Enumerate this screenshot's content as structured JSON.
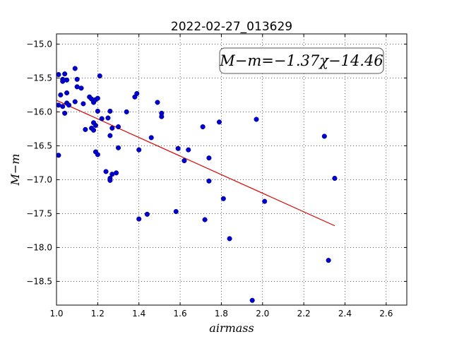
{
  "chart_data": {
    "type": "scatter",
    "title": "2022-02-27_013629",
    "xlabel": "airmass",
    "ylabel": "M−m",
    "xlim": [
      1.0,
      2.7
    ],
    "ylim": [
      -18.85,
      -14.85
    ],
    "y_inverted": true,
    "grid": true,
    "xticks": [
      1.0,
      1.2,
      1.4,
      1.6,
      1.8,
      2.0,
      2.2,
      2.4,
      2.6
    ],
    "xtick_labels": [
      "1.0",
      "1.2",
      "1.4",
      "1.6",
      "1.8",
      "2.0",
      "2.2",
      "2.4",
      "2.6"
    ],
    "yticks": [
      -15.0,
      -15.5,
      -16.0,
      -16.5,
      -17.0,
      -17.5,
      -18.0,
      -18.5
    ],
    "ytick_labels": [
      "−15.0",
      "−15.5",
      "−16.0",
      "−16.5",
      "−17.0",
      "−17.5",
      "−18.0",
      "−18.5"
    ],
    "annotation": "M−m=−1.37χ−14.46",
    "annotation_placement": "top-right",
    "fit": {
      "slope": -1.37,
      "intercept": -14.46,
      "x_range": [
        1.0,
        2.35
      ],
      "color": "#dd0000"
    },
    "series": [
      {
        "color": "#0000cc",
        "points": [
          [
            1.01,
            -15.45
          ],
          [
            1.02,
            -15.75
          ],
          [
            1.03,
            -15.52
          ],
          [
            1.03,
            -15.55
          ],
          [
            1.04,
            -15.44
          ],
          [
            1.05,
            -15.53
          ],
          [
            1.05,
            -15.72
          ],
          [
            1.05,
            -15.87
          ],
          [
            1.06,
            -15.9
          ],
          [
            1.01,
            -15.9
          ],
          [
            1.03,
            -15.92
          ],
          [
            1.04,
            -16.02
          ],
          [
            1.01,
            -16.64
          ],
          [
            1.09,
            -15.36
          ],
          [
            1.1,
            -15.52
          ],
          [
            1.1,
            -15.63
          ],
          [
            1.12,
            -15.65
          ],
          [
            1.09,
            -15.85
          ],
          [
            1.13,
            -15.88
          ],
          [
            1.16,
            -15.78
          ],
          [
            1.17,
            -15.81
          ],
          [
            1.18,
            -15.86
          ],
          [
            1.19,
            -15.82
          ],
          [
            1.2,
            -15.8
          ],
          [
            1.14,
            -16.26
          ],
          [
            1.17,
            -16.24
          ],
          [
            1.18,
            -16.27
          ],
          [
            1.19,
            -16.2
          ],
          [
            1.18,
            -16.16
          ],
          [
            1.2,
            -15.99
          ],
          [
            1.22,
            -16.1
          ],
          [
            1.21,
            -15.47
          ],
          [
            1.19,
            -16.59
          ],
          [
            1.2,
            -16.63
          ],
          [
            1.24,
            -16.88
          ],
          [
            1.25,
            -16.09
          ],
          [
            1.26,
            -15.99
          ],
          [
            1.27,
            -16.24
          ],
          [
            1.26,
            -16.35
          ],
          [
            1.26,
            -16.98
          ],
          [
            1.26,
            -17.01
          ],
          [
            1.27,
            -16.92
          ],
          [
            1.29,
            -16.9
          ],
          [
            1.3,
            -16.22
          ],
          [
            1.3,
            -16.53
          ],
          [
            1.34,
            -16.0
          ],
          [
            1.38,
            -15.78
          ],
          [
            1.39,
            -15.73
          ],
          [
            1.4,
            -16.56
          ],
          [
            1.4,
            -17.58
          ],
          [
            1.44,
            -17.51
          ],
          [
            1.46,
            -16.38
          ],
          [
            1.49,
            -15.86
          ],
          [
            1.51,
            -16.02
          ],
          [
            1.51,
            -16.07
          ],
          [
            1.58,
            -17.47
          ],
          [
            1.59,
            -16.54
          ],
          [
            1.62,
            -16.72
          ],
          [
            1.64,
            -16.56
          ],
          [
            1.71,
            -16.22
          ],
          [
            1.72,
            -17.59
          ],
          [
            1.74,
            -16.68
          ],
          [
            1.74,
            -17.02
          ],
          [
            1.79,
            -16.15
          ],
          [
            1.81,
            -17.28
          ],
          [
            1.84,
            -17.87
          ],
          [
            1.95,
            -18.78
          ],
          [
            1.97,
            -16.11
          ],
          [
            2.01,
            -17.32
          ],
          [
            2.3,
            -16.36
          ],
          [
            2.32,
            -18.19
          ],
          [
            2.35,
            -16.98
          ]
        ]
      }
    ]
  }
}
